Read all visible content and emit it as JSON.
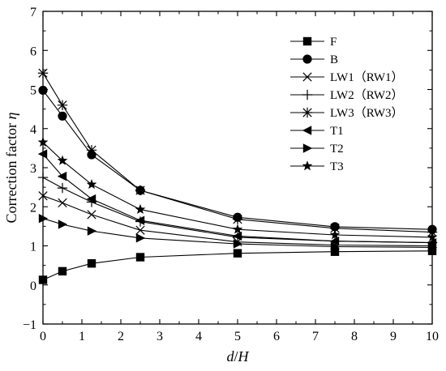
{
  "chart_data": {
    "type": "line",
    "xlabel_main": "d",
    "xlabel_slash": "/",
    "xlabel_sub": "H",
    "ylabel_text": "Correction factor ",
    "ylabel_symbol": "η",
    "xlim": [
      0,
      10
    ],
    "ylim": [
      -1,
      7
    ],
    "xticks": [
      0,
      1,
      2,
      3,
      4,
      5,
      6,
      7,
      8,
      9,
      10
    ],
    "yticks": [
      -1,
      0,
      1,
      2,
      3,
      4,
      5,
      6,
      7
    ],
    "grid": false,
    "legend_position": "top-right",
    "x": [
      0,
      0.5,
      1.25,
      2.5,
      5,
      7.5,
      10
    ],
    "series": [
      {
        "name": "F",
        "marker": "square",
        "values": [
          0.13,
          0.35,
          0.55,
          0.71,
          0.81,
          0.85,
          0.87
        ]
      },
      {
        "name": "B",
        "marker": "circle",
        "values": [
          4.98,
          4.32,
          3.33,
          2.42,
          1.73,
          1.49,
          1.42
        ]
      },
      {
        "name": "LW1（RW1）",
        "marker": "x",
        "values": [
          2.28,
          2.1,
          1.8,
          1.4,
          1.1,
          1.02,
          1.0
        ]
      },
      {
        "name": "LW2（RW2）",
        "marker": "plus",
        "values": [
          2.75,
          2.48,
          2.12,
          1.62,
          1.22,
          1.12,
          1.08
        ]
      },
      {
        "name": "LW3（RW3）",
        "marker": "asterisk",
        "values": [
          5.42,
          4.6,
          3.45,
          2.42,
          1.68,
          1.45,
          1.35
        ]
      },
      {
        "name": "T1",
        "marker": "triangle-left",
        "values": [
          3.35,
          2.78,
          2.2,
          1.65,
          1.25,
          1.12,
          1.08
        ]
      },
      {
        "name": "T2",
        "marker": "triangle-right",
        "values": [
          1.7,
          1.55,
          1.38,
          1.2,
          1.05,
          0.98,
          0.96
        ]
      },
      {
        "name": "T3",
        "marker": "star",
        "values": [
          3.65,
          3.18,
          2.57,
          1.93,
          1.42,
          1.28,
          1.22
        ]
      }
    ]
  }
}
